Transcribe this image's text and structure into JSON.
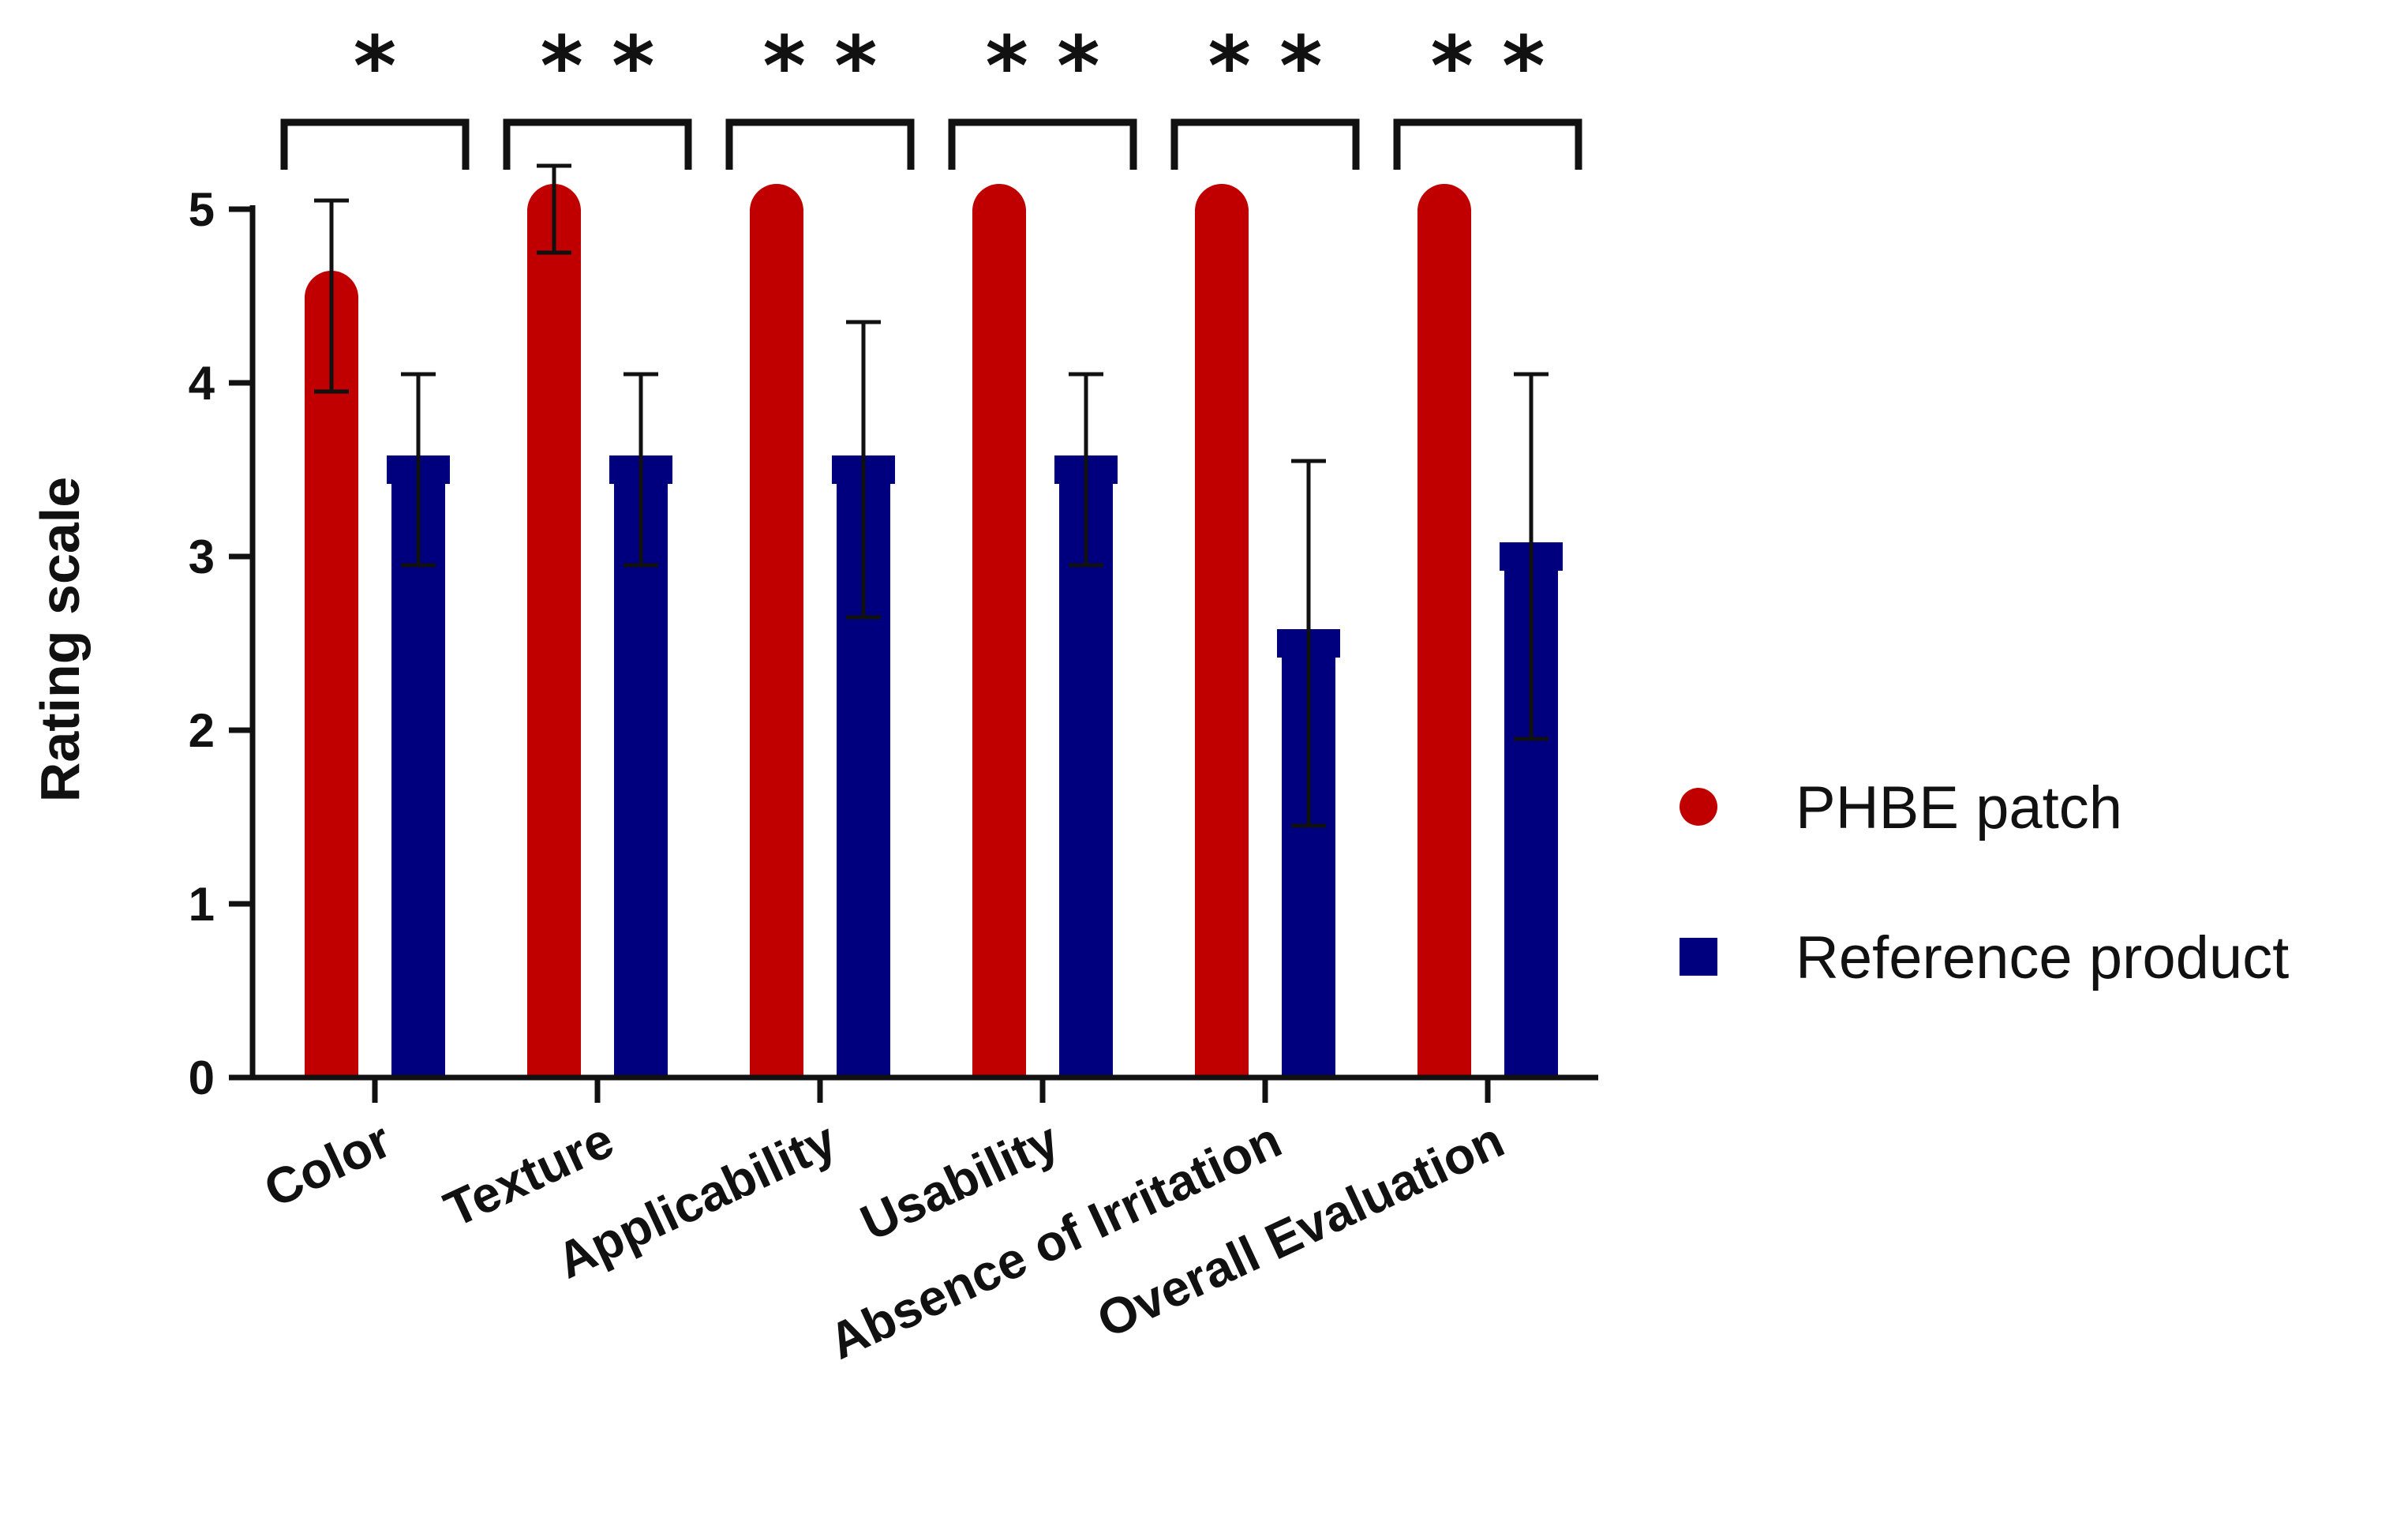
{
  "chart_data": {
    "type": "bar",
    "title": "",
    "xlabel": "",
    "ylabel": "Rating scale",
    "ylim": [
      0,
      5
    ],
    "yticks": [
      "0",
      "1",
      "2",
      "3",
      "4",
      "5"
    ],
    "grid": false,
    "legend_position": "right",
    "categories": [
      "Color",
      "Texture",
      "Applicability",
      "Usability",
      "Absence of Irritation",
      "Overall Evaluation"
    ],
    "series": [
      {
        "name": "PHBE patch",
        "color": "#C00000",
        "marker": "circle",
        "values": [
          4.5,
          5.0,
          5.0,
          5.0,
          5.0,
          5.0
        ],
        "error": [
          0.55,
          0.25,
          0,
          0,
          0,
          0
        ]
      },
      {
        "name": "Reference product",
        "color": "#00007F",
        "marker": "square",
        "values": [
          3.5,
          3.5,
          3.5,
          3.5,
          2.5,
          3.0
        ],
        "error": [
          0.55,
          0.55,
          0.85,
          0.55,
          1.05,
          1.05
        ]
      }
    ],
    "significance": [
      "*",
      "* *",
      "* *",
      "* *",
      "* *",
      "* *"
    ]
  }
}
